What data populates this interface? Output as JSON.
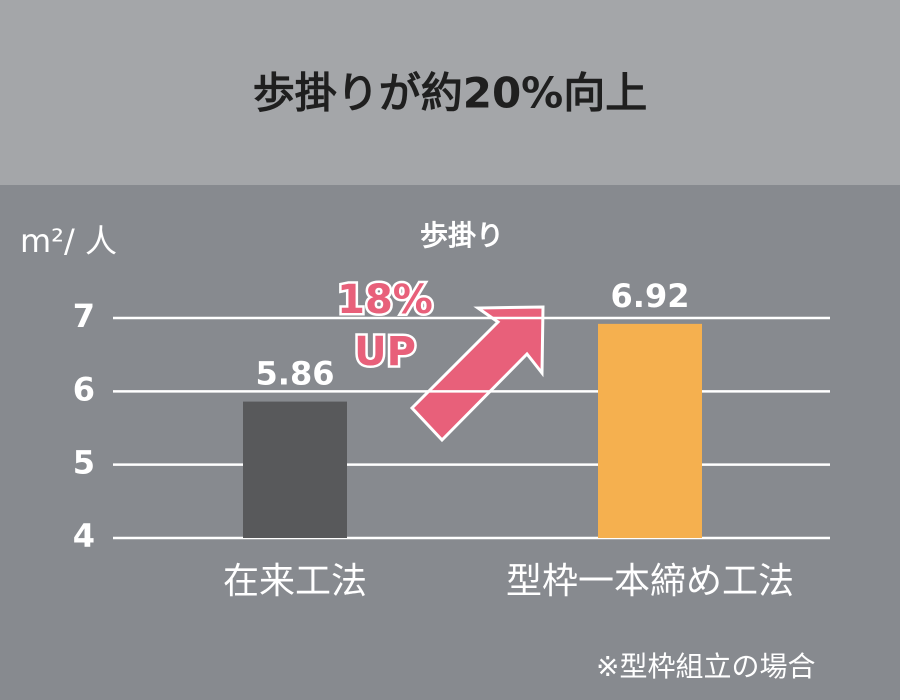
{
  "chart_data": {
    "type": "bar",
    "title": "歩掛りが約20%向上",
    "subtitle": "歩掛り",
    "y_label": "m²/ 人",
    "categories": [
      "在来工法",
      "型枠一本締め工法"
    ],
    "values": [
      5.86,
      6.92
    ],
    "colors": [
      "#58595b",
      "#f5b04f"
    ],
    "ylim": [
      4,
      7
    ],
    "yticks": [
      4,
      5,
      6,
      7
    ],
    "grid": true,
    "annotations": [
      "18%",
      "UP"
    ],
    "note": "※型枠組立の場合"
  }
}
